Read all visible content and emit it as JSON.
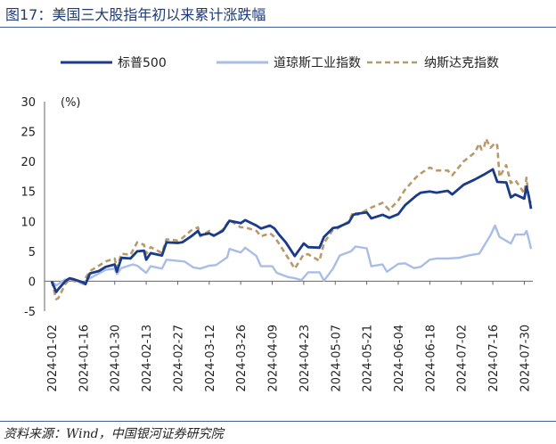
{
  "header": {
    "title": "图17：美国三大股指年初以来累计涨跌幅"
  },
  "footer": {
    "source": "资料来源：Wind，中国银河证券研究院"
  },
  "colors": {
    "sp500": "#1a3a8a",
    "dow": "#a9bde6",
    "nasdaq": "#b89a6a",
    "axis": "#666666",
    "negative_label": "#c00000"
  },
  "chart_data": {
    "type": "line",
    "ylabel": "(%)",
    "ylim": [
      -5,
      30
    ],
    "yticks": [
      -5,
      0,
      5,
      10,
      15,
      20,
      25,
      30
    ],
    "xlim": [
      "2024-01-02",
      "2024-08-02"
    ],
    "xticks": [
      "2024-01-02",
      "2024-01-16",
      "2024-01-30",
      "2024-02-13",
      "2024-02-27",
      "2024-03-12",
      "2024-03-26",
      "2024-04-09",
      "2024-04-23",
      "2024-05-07",
      "2024-05-21",
      "2024-06-04",
      "2024-06-18",
      "2024-07-02",
      "2024-07-16",
      "2024-07-30"
    ],
    "legend_position": "top",
    "series": [
      {
        "name": "标普500",
        "style": "solid",
        "color": "#1a3a8a",
        "points": [
          [
            "2024-01-02",
            0.0
          ],
          [
            "2024-01-04",
            -1.8
          ],
          [
            "2024-01-05",
            -1.3
          ],
          [
            "2024-01-08",
            0.0
          ],
          [
            "2024-01-10",
            0.5
          ],
          [
            "2024-01-12",
            0.3
          ],
          [
            "2024-01-16",
            -0.2
          ],
          [
            "2024-01-17",
            -0.5
          ],
          [
            "2024-01-19",
            1.3
          ],
          [
            "2024-01-23",
            1.7
          ],
          [
            "2024-01-26",
            2.4
          ],
          [
            "2024-01-30",
            2.8
          ],
          [
            "2024-01-31",
            1.6
          ],
          [
            "2024-02-02",
            3.9
          ],
          [
            "2024-02-06",
            3.8
          ],
          [
            "2024-02-09",
            5.0
          ],
          [
            "2024-02-12",
            5.1
          ],
          [
            "2024-02-13",
            3.6
          ],
          [
            "2024-02-15",
            4.7
          ],
          [
            "2024-02-20",
            4.3
          ],
          [
            "2024-02-22",
            6.5
          ],
          [
            "2024-02-27",
            6.4
          ],
          [
            "2024-02-29",
            6.5
          ],
          [
            "2024-03-04",
            7.5
          ],
          [
            "2024-03-07",
            8.4
          ],
          [
            "2024-03-08",
            7.7
          ],
          [
            "2024-03-12",
            8.0
          ],
          [
            "2024-03-14",
            7.6
          ],
          [
            "2024-03-18",
            8.4
          ],
          [
            "2024-03-21",
            10.1
          ],
          [
            "2024-03-26",
            9.7
          ],
          [
            "2024-03-28",
            10.2
          ],
          [
            "2024-04-02",
            9.3
          ],
          [
            "2024-04-04",
            8.8
          ],
          [
            "2024-04-08",
            9.3
          ],
          [
            "2024-04-10",
            8.8
          ],
          [
            "2024-04-12",
            7.8
          ],
          [
            "2024-04-15",
            6.5
          ],
          [
            "2024-04-19",
            4.2
          ],
          [
            "2024-04-23",
            6.3
          ],
          [
            "2024-04-25",
            5.7
          ],
          [
            "2024-04-30",
            5.6
          ],
          [
            "2024-05-02",
            7.4
          ],
          [
            "2024-05-06",
            8.9
          ],
          [
            "2024-05-08",
            9.0
          ],
          [
            "2024-05-13",
            9.8
          ],
          [
            "2024-05-15",
            11.1
          ],
          [
            "2024-05-17",
            11.3
          ],
          [
            "2024-05-21",
            11.5
          ],
          [
            "2024-05-23",
            10.5
          ],
          [
            "2024-05-28",
            11.1
          ],
          [
            "2024-05-31",
            10.6
          ],
          [
            "2024-06-04",
            11.2
          ],
          [
            "2024-06-07",
            12.7
          ],
          [
            "2024-06-12",
            14.3
          ],
          [
            "2024-06-14",
            14.8
          ],
          [
            "2024-06-18",
            15.0
          ],
          [
            "2024-06-21",
            14.8
          ],
          [
            "2024-06-26",
            15.1
          ],
          [
            "2024-06-28",
            14.5
          ],
          [
            "2024-07-03",
            16.1
          ],
          [
            "2024-07-08",
            17.0
          ],
          [
            "2024-07-12",
            17.8
          ],
          [
            "2024-07-16",
            18.7
          ],
          [
            "2024-07-18",
            16.6
          ],
          [
            "2024-07-22",
            16.5
          ],
          [
            "2024-07-24",
            14.0
          ],
          [
            "2024-07-26",
            14.5
          ],
          [
            "2024-07-30",
            13.8
          ],
          [
            "2024-07-31",
            15.8
          ],
          [
            "2024-08-01",
            14.2
          ],
          [
            "2024-08-02",
            12.1
          ]
        ]
      },
      {
        "name": "道琼斯工业指数",
        "style": "solid",
        "color": "#a9bde6",
        "points": [
          [
            "2024-01-02",
            0.0
          ],
          [
            "2024-01-04",
            -0.7
          ],
          [
            "2024-01-08",
            0.3
          ],
          [
            "2024-01-12",
            0.3
          ],
          [
            "2024-01-16",
            -0.5
          ],
          [
            "2024-01-18",
            0.3
          ],
          [
            "2024-01-23",
            1.3
          ],
          [
            "2024-01-26",
            1.9
          ],
          [
            "2024-01-30",
            2.1
          ],
          [
            "2024-01-31",
            1.2
          ],
          [
            "2024-02-02",
            2.2
          ],
          [
            "2024-02-07",
            2.8
          ],
          [
            "2024-02-09",
            2.6
          ],
          [
            "2024-02-13",
            1.4
          ],
          [
            "2024-02-15",
            2.5
          ],
          [
            "2024-02-20",
            2.1
          ],
          [
            "2024-02-22",
            3.6
          ],
          [
            "2024-02-27",
            3.4
          ],
          [
            "2024-03-01",
            3.3
          ],
          [
            "2024-03-05",
            2.3
          ],
          [
            "2024-03-08",
            2.1
          ],
          [
            "2024-03-12",
            2.6
          ],
          [
            "2024-03-15",
            2.7
          ],
          [
            "2024-03-20",
            4.0
          ],
          [
            "2024-03-21",
            5.4
          ],
          [
            "2024-03-26",
            4.8
          ],
          [
            "2024-03-28",
            5.6
          ],
          [
            "2024-04-02",
            4.2
          ],
          [
            "2024-04-04",
            2.5
          ],
          [
            "2024-04-09",
            2.5
          ],
          [
            "2024-04-11",
            1.4
          ],
          [
            "2024-04-16",
            0.7
          ],
          [
            "2024-04-19",
            0.5
          ],
          [
            "2024-04-22",
            0.2
          ],
          [
            "2024-04-25",
            1.5
          ],
          [
            "2024-04-30",
            1.5
          ],
          [
            "2024-05-02",
            0.1
          ],
          [
            "2024-05-06",
            2.1
          ],
          [
            "2024-05-09",
            4.3
          ],
          [
            "2024-05-14",
            5.0
          ],
          [
            "2024-05-16",
            5.8
          ],
          [
            "2024-05-21",
            5.5
          ],
          [
            "2024-05-23",
            2.5
          ],
          [
            "2024-05-28",
            2.8
          ],
          [
            "2024-05-30",
            1.6
          ],
          [
            "2024-06-04",
            2.9
          ],
          [
            "2024-06-07",
            3.0
          ],
          [
            "2024-06-11",
            2.2
          ],
          [
            "2024-06-14",
            2.4
          ],
          [
            "2024-06-18",
            3.6
          ],
          [
            "2024-06-21",
            3.8
          ],
          [
            "2024-06-26",
            3.8
          ],
          [
            "2024-07-01",
            3.9
          ],
          [
            "2024-07-05",
            4.3
          ],
          [
            "2024-07-10",
            4.6
          ],
          [
            "2024-07-15",
            7.7
          ],
          [
            "2024-07-17",
            9.3
          ],
          [
            "2024-07-19",
            7.4
          ],
          [
            "2024-07-24",
            6.3
          ],
          [
            "2024-07-26",
            7.8
          ],
          [
            "2024-07-30",
            7.8
          ],
          [
            "2024-07-31",
            8.4
          ],
          [
            "2024-08-01",
            7.0
          ],
          [
            "2024-08-02",
            5.4
          ]
        ]
      },
      {
        "name": "纳斯达克指数",
        "style": "dashed",
        "color": "#b89a6a",
        "points": [
          [
            "2024-01-02",
            0.0
          ],
          [
            "2024-01-04",
            -3.0
          ],
          [
            "2024-01-05",
            -2.8
          ],
          [
            "2024-01-08",
            -0.5
          ],
          [
            "2024-01-10",
            0.3
          ],
          [
            "2024-01-12",
            0.0
          ],
          [
            "2024-01-16",
            -0.3
          ],
          [
            "2024-01-17",
            0.5
          ],
          [
            "2024-01-19",
            1.7
          ],
          [
            "2024-01-23",
            2.6
          ],
          [
            "2024-01-26",
            3.3
          ],
          [
            "2024-01-30",
            3.8
          ],
          [
            "2024-01-31",
            2.2
          ],
          [
            "2024-02-02",
            4.6
          ],
          [
            "2024-02-06",
            4.4
          ],
          [
            "2024-02-09",
            6.5
          ],
          [
            "2024-02-12",
            6.1
          ],
          [
            "2024-02-13",
            4.6
          ],
          [
            "2024-02-15",
            5.7
          ],
          [
            "2024-02-20",
            4.7
          ],
          [
            "2024-02-22",
            7.0
          ],
          [
            "2024-02-27",
            6.8
          ],
          [
            "2024-02-29",
            7.2
          ],
          [
            "2024-03-04",
            8.5
          ],
          [
            "2024-03-07",
            9.0
          ],
          [
            "2024-03-08",
            7.5
          ],
          [
            "2024-03-12",
            8.4
          ],
          [
            "2024-03-14",
            7.6
          ],
          [
            "2024-03-18",
            8.6
          ],
          [
            "2024-03-21",
            10.2
          ],
          [
            "2024-03-26",
            9.0
          ],
          [
            "2024-03-28",
            9.0
          ],
          [
            "2024-04-02",
            8.4
          ],
          [
            "2024-04-04",
            7.5
          ],
          [
            "2024-04-08",
            8.0
          ],
          [
            "2024-04-10",
            7.4
          ],
          [
            "2024-04-12",
            6.3
          ],
          [
            "2024-04-15",
            4.5
          ],
          [
            "2024-04-19",
            2.1
          ],
          [
            "2024-04-23",
            4.5
          ],
          [
            "2024-04-25",
            4.5
          ],
          [
            "2024-04-30",
            3.4
          ],
          [
            "2024-05-02",
            6.4
          ],
          [
            "2024-05-06",
            8.6
          ],
          [
            "2024-05-08",
            8.8
          ],
          [
            "2024-05-13",
            10.0
          ],
          [
            "2024-05-15",
            11.6
          ],
          [
            "2024-05-17",
            11.1
          ],
          [
            "2024-05-21",
            11.9
          ],
          [
            "2024-05-23",
            12.3
          ],
          [
            "2024-05-28",
            13.1
          ],
          [
            "2024-05-31",
            11.9
          ],
          [
            "2024-06-04",
            13.5
          ],
          [
            "2024-06-07",
            15.3
          ],
          [
            "2024-06-12",
            17.4
          ],
          [
            "2024-06-14",
            18.0
          ],
          [
            "2024-06-18",
            19.0
          ],
          [
            "2024-06-21",
            18.5
          ],
          [
            "2024-06-26",
            18.5
          ],
          [
            "2024-06-28",
            17.7
          ],
          [
            "2024-07-03",
            20.0
          ],
          [
            "2024-07-08",
            21.5
          ],
          [
            "2024-07-12",
            22.2
          ],
          [
            "2024-07-10",
            23.0
          ],
          [
            "2024-07-11",
            22.0
          ],
          [
            "2024-07-13",
            23.8
          ],
          [
            "2024-07-15",
            22.3
          ],
          [
            "2024-07-17",
            23.1
          ],
          [
            "2024-07-18",
            22.7
          ],
          [
            "2024-07-19",
            17.4
          ],
          [
            "2024-07-22",
            19.4
          ],
          [
            "2024-07-24",
            16.4
          ],
          [
            "2024-07-26",
            16.9
          ],
          [
            "2024-07-30",
            14.7
          ],
          [
            "2024-07-31",
            17.3
          ],
          [
            "2024-08-01",
            13.6
          ],
          [
            "2024-08-02",
            13.1
          ]
        ]
      }
    ]
  }
}
